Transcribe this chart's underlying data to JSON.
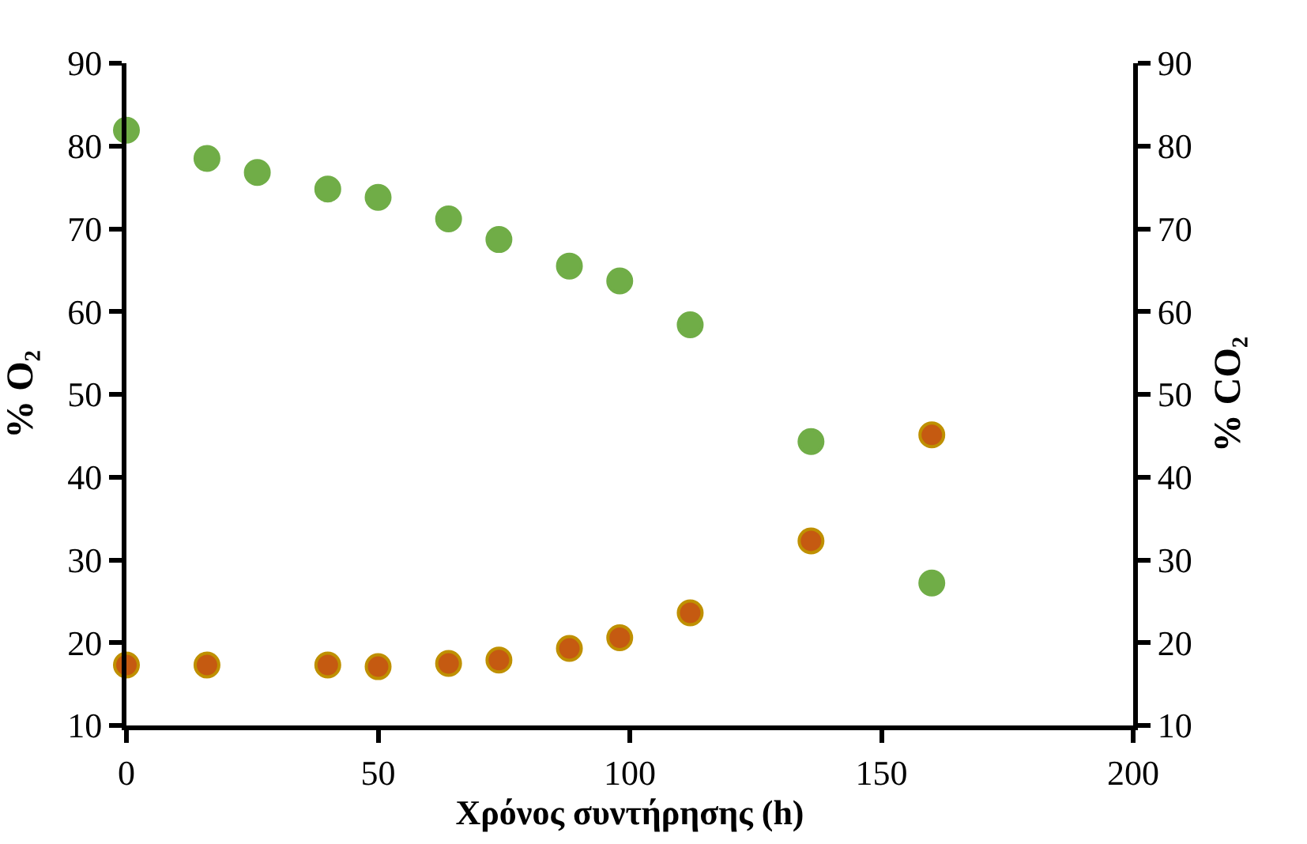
{
  "chart_data": {
    "type": "scatter",
    "xlabel": "Χρόνος συντήρησης (h)",
    "ylabel": "% O₂",
    "y2label": "% CO₂",
    "x": [
      0,
      16,
      26,
      40,
      50,
      64,
      74,
      88,
      98,
      112,
      136,
      160
    ],
    "series": [
      {
        "color": "#70ad47",
        "values": [
          81.9,
          78.5,
          76.8,
          74.8,
          73.8,
          71.2,
          68.7,
          65.5,
          63.7,
          58.4,
          44.3,
          27.2
        ]
      },
      {
        "color": "#c55a11",
        "axis": "y2",
        "x": [
          0,
          16,
          40,
          50,
          64,
          74,
          88,
          98,
          112,
          136,
          160
        ],
        "values": [
          17.3,
          17.3,
          17.3,
          17.1,
          17.5,
          17.9,
          19.3,
          20.6,
          23.6,
          32.3,
          45.1
        ]
      }
    ],
    "xlim": [
      0,
      200
    ],
    "xticks": [
      0,
      50,
      100,
      150,
      200
    ],
    "ylim": [
      10,
      90
    ],
    "yticks": [
      10,
      20,
      30,
      40,
      50,
      60,
      70,
      80,
      90
    ],
    "y2lim": [
      10,
      90
    ],
    "y2ticks": [
      10,
      20,
      30,
      40,
      50,
      60,
      70,
      80,
      90
    ],
    "marker": "circle"
  }
}
